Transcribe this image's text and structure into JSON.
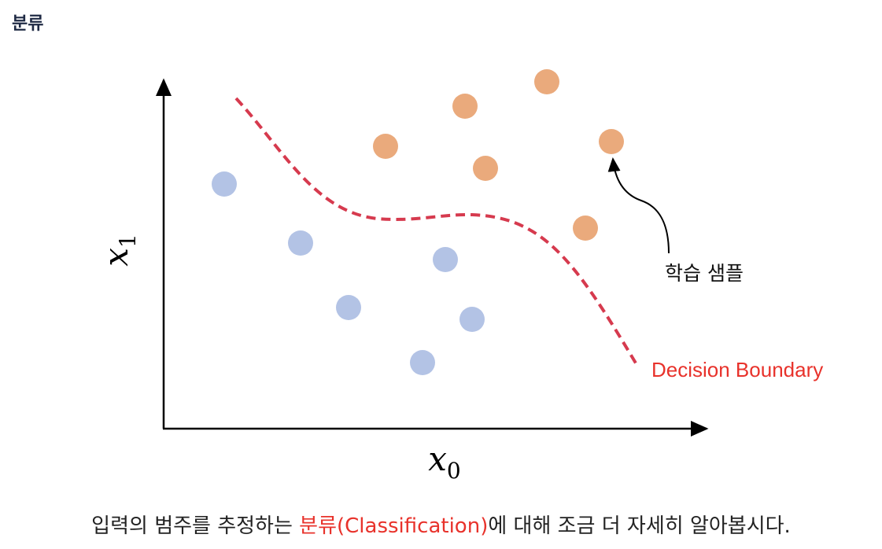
{
  "header": {
    "title": "분류"
  },
  "diagram": {
    "y_axis_label": {
      "main": "x",
      "subscript": "1"
    },
    "x_axis_label": {
      "main": "x",
      "subscript": "0"
    },
    "sample_annotation": "학습 샘플",
    "boundary_label": "Decision Boundary"
  },
  "caption": {
    "before": "입력의 범주를 추정하는 ",
    "highlight": "분류(Classification)",
    "after": "에 대해 조금 더 자세히 알아봅시다."
  }
}
